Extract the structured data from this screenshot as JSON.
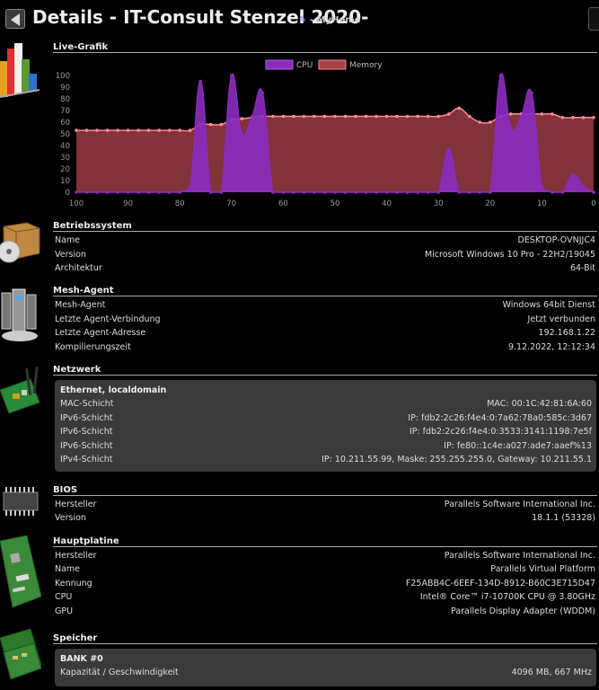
{
  "header": {
    "title": "Details - IT-Consult Stenzel 2020-",
    "subtitle": "- MyHome"
  },
  "live": {
    "title": "Live-Grafik",
    "legend": {
      "cpu": "CPU",
      "memory": "Memory"
    },
    "colors": {
      "cpu_line": "#8b2bbf",
      "cpu_fill": "#8b2bbf",
      "mem_line": "#ff8a98",
      "mem_fill": "#a64049"
    }
  },
  "chart_data": {
    "type": "area",
    "x": [
      100,
      98,
      96,
      94,
      92,
      90,
      88,
      86,
      84,
      82,
      80,
      78,
      76,
      74,
      72,
      70,
      68,
      66,
      64,
      62,
      60,
      58,
      56,
      54,
      52,
      50,
      48,
      46,
      44,
      42,
      40,
      38,
      36,
      34,
      32,
      30,
      28,
      26,
      24,
      22,
      20,
      18,
      16,
      14,
      12,
      10,
      8,
      6,
      4,
      2,
      0
    ],
    "series": [
      {
        "name": "CPU",
        "values": [
          0,
          0,
          0,
          0,
          0,
          0,
          0,
          0,
          0,
          0,
          0,
          5,
          95,
          0,
          0,
          100,
          50,
          65,
          85,
          0,
          0,
          0,
          0,
          0,
          0,
          0,
          0,
          0,
          0,
          0,
          0,
          0,
          0,
          0,
          0,
          0,
          37,
          0,
          0,
          0,
          0,
          100,
          55,
          65,
          85,
          5,
          0,
          0,
          15,
          5,
          0
        ]
      },
      {
        "name": "Memory",
        "values": [
          53,
          53,
          53,
          53,
          53,
          53,
          53,
          53,
          53,
          53,
          53,
          53,
          58,
          58,
          58,
          62,
          63,
          64,
          65,
          65,
          65,
          65,
          65,
          65,
          65,
          65,
          65,
          65,
          65,
          65,
          65,
          65,
          65,
          65,
          65,
          65,
          67,
          72,
          65,
          60,
          60,
          65,
          67,
          67,
          67,
          67,
          67,
          64,
          64,
          64,
          64
        ]
      }
    ],
    "xlim": [
      100,
      0
    ],
    "ylim": [
      0,
      100
    ],
    "xticks": [
      100,
      90,
      80,
      70,
      60,
      50,
      40,
      30,
      20,
      10,
      0
    ],
    "yticks": [
      0,
      10,
      20,
      30,
      40,
      50,
      60,
      70,
      80,
      90,
      100
    ],
    "legend": "top",
    "grid": false
  },
  "os": {
    "title": "Betriebssystem",
    "rows": [
      {
        "label": "Name",
        "value": "DESKTOP-OVNJJC4"
      },
      {
        "label": "Version",
        "value": "Microsoft Windows 10 Pro - 22H2/19045"
      },
      {
        "label": "Architektur",
        "value": "64-Bit"
      }
    ]
  },
  "agent": {
    "title": "Mesh-Agent",
    "rows": [
      {
        "label": "Mesh-Agent",
        "value": "Windows 64bit Dienst"
      },
      {
        "label": "Letzte Agent-Verbindung",
        "value": "Jetzt verbunden"
      },
      {
        "label": "Letzte Agent-Adresse",
        "value": "192.168.1.22"
      },
      {
        "label": "Kompilierungszeit",
        "value": "9.12.2022, 12:12:34"
      }
    ]
  },
  "network": {
    "title": "Netzwerk",
    "adapter_title": "Ethernet, localdomain",
    "rows": [
      {
        "label": "MAC-Schicht",
        "value": "MAC: 00:1C:42:81:6A:60"
      },
      {
        "label": "IPv6-Schicht",
        "value": "IP: fdb2:2c26:f4e4:0:7a62:78a0:585c:3d67"
      },
      {
        "label": "IPv6-Schicht",
        "value": "IP: fdb2:2c26:f4e4:0:3533:3141:1198:7e5f"
      },
      {
        "label": "IPv6-Schicht",
        "value": "IP: fe80::1c4e:a027:ade7:aaef%13"
      },
      {
        "label": "IPv4-Schicht",
        "value": "IP: 10.211.55.99, Maske: 255.255.255.0, Gateway: 10.211.55.1"
      }
    ]
  },
  "bios": {
    "title": "BIOS",
    "rows": [
      {
        "label": "Hersteller",
        "value": "Parallels Software International Inc."
      },
      {
        "label": "Version",
        "value": "18.1.1 (53328)"
      }
    ]
  },
  "board": {
    "title": "Hauptplatine",
    "rows": [
      {
        "label": "Hersteller",
        "value": "Parallels Software International Inc."
      },
      {
        "label": "Name",
        "value": "Parallels Virtual Platform"
      },
      {
        "label": "Kennung",
        "value": "F25ABB4C-6EEF-134D-8912-B60C3E715D47"
      },
      {
        "label": "CPU",
        "value": "Intel® Core™ i7-10700K CPU @ 3.80GHz"
      },
      {
        "label": "GPU",
        "value": "Parallels Display Adapter (WDDM)"
      }
    ]
  },
  "memory": {
    "title": "Speicher",
    "bank_title": "BANK #0",
    "rows": [
      {
        "label": "Kapazität / Geschwindigkeit",
        "value": "4096 MB, 667 MHz"
      }
    ]
  },
  "icons": [
    "back-arrow-icon",
    "edit-pencil-icon",
    "bar-chart-icon",
    "software-box-icon",
    "server-cluster-icon",
    "network-card-icon",
    "memory-chip-icon",
    "motherboard-icon",
    "ram-module-icon"
  ]
}
